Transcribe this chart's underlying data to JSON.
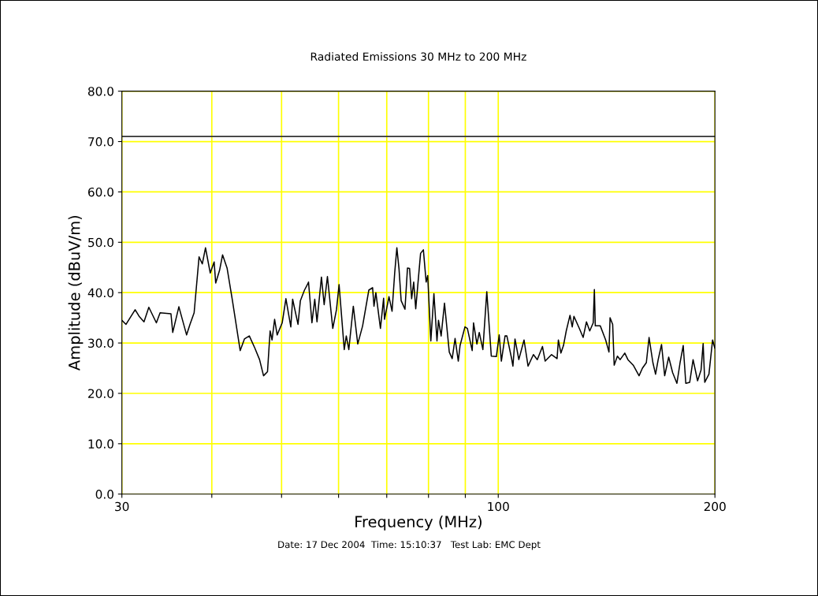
{
  "chart_data": {
    "type": "line",
    "title": "Radiated Emissions 30 MHz to 200 MHz",
    "xlabel": "Frequency (MHz)",
    "ylabel": "Amplitude (dBuV/m)",
    "log": "x",
    "grid": true,
    "marker": "none",
    "line_style": "solid",
    "xlim": [
      30,
      200
    ],
    "xticks": [
      30,
      {
        "value": 40,
        "label": null
      },
      {
        "value": 50,
        "label": null
      },
      {
        "value": 60,
        "label": null
      },
      {
        "value": 70,
        "label": null
      },
      {
        "value": 80,
        "label": null
      },
      {
        "value": 90,
        "label": null
      },
      100,
      200
    ],
    "ylim": [
      0,
      80
    ],
    "yticks": [
      {
        "value": 0,
        "label": "0.0"
      },
      {
        "value": 10,
        "label": "10.0"
      },
      {
        "value": 20,
        "label": "20.0"
      },
      {
        "value": 30,
        "label": "30.0"
      },
      {
        "value": 40,
        "label": "40.0"
      },
      {
        "value": 50,
        "label": "50.0"
      },
      {
        "value": 60,
        "label": "60.0"
      },
      {
        "value": 70,
        "label": "70.0"
      },
      {
        "value": 80,
        "label": "80.0"
      }
    ],
    "ref_lines": [
      {
        "axis": "y",
        "value": 71,
        "label": null,
        "color": "#333333"
      }
    ],
    "annotations": [
      "Date: 17 Dec 2004  Time: 15:10:37   Test Lab: EMC Dept"
    ],
    "series": [
      {
        "color": "#000000",
        "x": [
          30.0,
          30.4,
          31.3,
          31.7,
          32.2,
          32.7,
          33.5,
          33.9,
          35.1,
          35.3,
          36.0,
          36.9,
          37.3,
          37.8,
          38.4,
          38.8,
          39.2,
          39.8,
          40.3,
          40.5,
          41.0,
          41.4,
          42.0,
          42.7,
          43.8,
          44.4,
          45.1,
          45.9,
          46.6,
          47.2,
          47.8,
          48.2,
          48.5,
          48.9,
          49.3,
          50.1,
          50.7,
          51.5,
          51.8,
          52.7,
          53.1,
          53.8,
          54.4,
          54.5,
          55.1,
          55.6,
          56.0,
          56.8,
          57.3,
          57.9,
          58.9,
          59.6,
          60.1,
          61.1,
          61.5,
          62.0,
          62.9,
          63.8,
          64.8,
          66.1,
          66.9,
          67.2,
          67.6,
          68.6,
          69.3,
          69.5,
          70.5,
          71.2,
          71.8,
          72.3,
          72.8,
          73.3,
          74.2,
          74.8,
          75.3,
          75.8,
          76.3,
          76.8,
          78.0,
          78.7,
          79.4,
          79.8,
          80.6,
          81.4,
          82.2,
          82.6,
          83.3,
          84.2,
          85.5,
          86.3,
          87.1,
          88.0,
          88.5,
          89.9,
          90.6,
          92.0,
          92.4,
          93.4,
          94.1,
          95.2,
          96.4,
          97.8,
          99.4,
          100.3,
          101.0,
          102.2,
          102.8,
          104.4,
          104.8,
          105.5,
          106.8,
          108.6,
          110.0,
          111.9,
          113.3,
          115.2,
          116.2,
          118.6,
          120.7,
          121.2,
          122.2,
          123.2,
          124.3,
          125.8,
          126.7,
          127.4,
          129.6,
          131.2,
          132.6,
          134.0,
          135.5,
          136.0,
          136.4,
          138.6,
          141.0,
          142.5,
          143.0,
          144.2,
          144.9,
          146.4,
          147.7,
          149.9,
          151.4,
          154.0,
          156.9,
          158.6,
          160.6,
          162.0,
          164.0,
          165.4,
          166.8,
          168.6,
          170.3,
          172.5,
          174.7,
          177.1,
          178.9,
          180.7,
          182.2,
          184.5,
          186.5,
          189.2,
          191.3,
          192.6,
          193.6,
          196.2,
          198.5,
          199.9
        ],
        "values": [
          34.5,
          33.7,
          36.6,
          35.3,
          34.2,
          37.1,
          34.0,
          36.0,
          35.8,
          32.1,
          37.2,
          31.6,
          33.7,
          36.0,
          47.1,
          45.7,
          48.9,
          43.9,
          46.1,
          41.9,
          44.4,
          47.5,
          44.9,
          38.7,
          28.5,
          30.8,
          31.4,
          29.0,
          26.7,
          23.5,
          24.3,
          32.4,
          30.6,
          34.7,
          31.6,
          34.0,
          38.8,
          33.2,
          38.7,
          33.7,
          38.4,
          40.5,
          41.8,
          42.1,
          34.0,
          38.7,
          34.2,
          43.1,
          37.6,
          43.2,
          32.9,
          36.6,
          41.6,
          28.7,
          31.4,
          28.7,
          37.3,
          29.8,
          33.4,
          40.5,
          41.0,
          37.3,
          40.0,
          32.9,
          38.9,
          34.7,
          39.2,
          36.3,
          43.9,
          48.9,
          44.7,
          38.4,
          36.7,
          44.9,
          44.8,
          38.8,
          42.1,
          36.8,
          47.8,
          48.5,
          42.1,
          43.4,
          30.4,
          39.8,
          30.4,
          34.5,
          31.4,
          37.9,
          28.2,
          26.9,
          30.9,
          26.4,
          29.5,
          33.2,
          32.9,
          28.5,
          34.0,
          29.8,
          32.1,
          28.7,
          40.2,
          27.4,
          27.3,
          31.6,
          26.4,
          31.4,
          31.4,
          26.8,
          25.4,
          30.8,
          26.7,
          30.6,
          25.4,
          27.7,
          26.7,
          29.3,
          26.4,
          27.7,
          26.9,
          30.6,
          28.0,
          29.5,
          32.4,
          35.5,
          33.2,
          35.3,
          32.9,
          31.1,
          34.2,
          32.4,
          34.0,
          40.6,
          33.4,
          33.4,
          30.6,
          28.2,
          35.0,
          33.7,
          25.6,
          27.4,
          26.7,
          28.0,
          26.7,
          25.6,
          23.5,
          25.0,
          26.1,
          31.1,
          26.1,
          23.8,
          26.7,
          29.7,
          23.5,
          27.2,
          24.1,
          22.0,
          26.1,
          29.5,
          22.0,
          22.2,
          26.7,
          22.5,
          24.6,
          29.9,
          22.2,
          23.8,
          30.6,
          29.0
        ]
      }
    ]
  }
}
